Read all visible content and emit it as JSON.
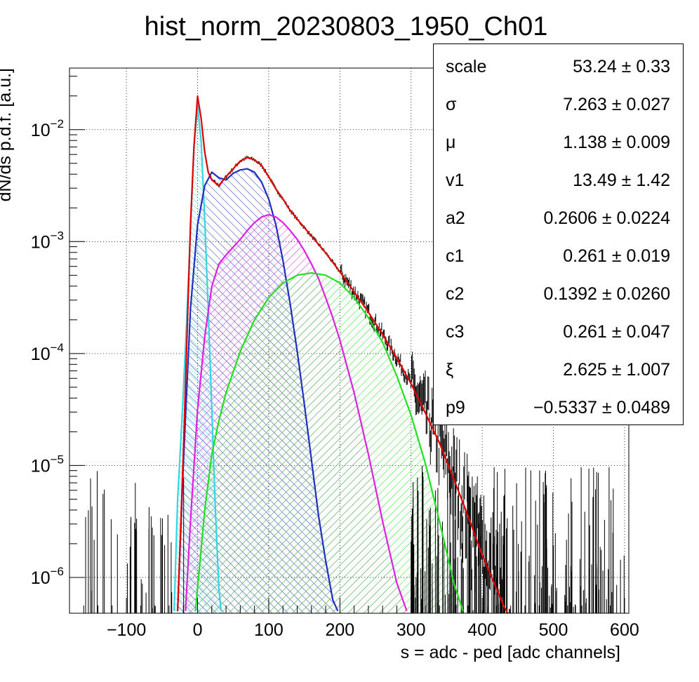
{
  "chart_data": {
    "type": "line",
    "title": "hist_norm_20230803_1950_Ch01",
    "xlabel": "s = adc - ped [adc channels]",
    "ylabel": "dN/ds p.d.f. [a.u.]",
    "xlim": [
      -180,
      606
    ],
    "ylim_log10": [
      -6.32,
      -1.45
    ],
    "log_y": true,
    "grid": true,
    "x_ticks": [
      -100,
      0,
      100,
      200,
      300,
      400,
      500,
      600
    ],
    "x_tick_labels": [
      "−100",
      "0",
      "100",
      "200",
      "300",
      "400",
      "500",
      "600"
    ],
    "y_ticks_exponent": [
      -6,
      -5,
      -4,
      -3,
      -2
    ],
    "y_tick_labels": [
      "10−6",
      "10−5",
      "10−4",
      "10−3",
      "10−2"
    ],
    "colors": {
      "data": "#000000",
      "total_fit": "#e00000",
      "pedestal": "#33d6e0",
      "one_pe": "#1f2fbf",
      "two_pe": "#e020e0",
      "three_pe": "#20e020"
    },
    "series": [
      {
        "key": "pedestal",
        "color": "#33d6e0",
        "hatch": "hatch-cyan",
        "x": [
          -33,
          -28,
          -22,
          -16,
          -10,
          -5,
          0,
          5,
          10,
          15,
          20,
          25,
          30,
          33
        ],
        "log10": [
          -6.3,
          -5.3,
          -4.6,
          -3.8,
          -2.9,
          -2.15,
          -1.78,
          -2.1,
          -2.8,
          -3.6,
          -4.5,
          -5.4,
          -6.1,
          -6.3
        ]
      },
      {
        "key": "one_pe",
        "color": "#1f2fbf",
        "hatch": "hatch-blue",
        "x": [
          -28,
          -20,
          -10,
          0,
          10,
          20,
          30,
          40,
          50,
          60,
          70,
          80,
          90,
          100,
          110,
          120,
          130,
          140,
          150,
          160,
          170,
          180,
          190,
          197
        ],
        "log10": [
          -6.3,
          -5.0,
          -3.6,
          -2.85,
          -2.5,
          -2.38,
          -2.43,
          -2.45,
          -2.39,
          -2.36,
          -2.35,
          -2.38,
          -2.47,
          -2.62,
          -2.85,
          -3.17,
          -3.55,
          -3.98,
          -4.45,
          -4.95,
          -5.45,
          -5.85,
          -6.2,
          -6.3
        ]
      },
      {
        "key": "two_pe",
        "color": "#e020e0",
        "hatch": "hatch-magenta",
        "x": [
          -17,
          -10,
          0,
          10,
          20,
          30,
          40,
          50,
          60,
          70,
          80,
          90,
          100,
          110,
          120,
          130,
          140,
          150,
          160,
          170,
          180,
          190,
          200,
          220,
          240,
          260,
          280,
          294
        ],
        "log10": [
          -6.3,
          -5.5,
          -4.5,
          -3.85,
          -3.4,
          -3.2,
          -3.12,
          -3.05,
          -2.98,
          -2.9,
          -2.83,
          -2.78,
          -2.76,
          -2.78,
          -2.83,
          -2.9,
          -2.98,
          -3.08,
          -3.2,
          -3.33,
          -3.5,
          -3.68,
          -3.88,
          -4.35,
          -4.9,
          -5.5,
          -6.05,
          -6.3
        ]
      },
      {
        "key": "three_pe",
        "color": "#20e020",
        "hatch": "hatch-green",
        "x": [
          -3,
          10,
          20,
          30,
          40,
          60,
          80,
          100,
          120,
          140,
          160,
          180,
          200,
          220,
          240,
          260,
          280,
          300,
          320,
          340,
          360,
          373
        ],
        "log10": [
          -6.3,
          -5.4,
          -4.9,
          -4.6,
          -4.35,
          -3.98,
          -3.7,
          -3.5,
          -3.37,
          -3.3,
          -3.28,
          -3.3,
          -3.37,
          -3.5,
          -3.68,
          -3.9,
          -4.2,
          -4.55,
          -4.98,
          -5.5,
          -6.05,
          -6.3
        ]
      },
      {
        "key": "total_fit",
        "color": "#e00000",
        "hatch": null,
        "x": [
          -28,
          -20,
          -10,
          -5,
          0,
          5,
          10,
          15,
          20,
          30,
          40,
          50,
          60,
          70,
          80,
          90,
          100,
          110,
          120,
          130,
          140,
          160,
          180,
          200,
          220,
          240,
          260,
          280,
          300,
          320,
          340,
          360,
          380,
          400,
          420,
          430,
          436
        ],
        "log10": [
          -6.3,
          -4.9,
          -2.85,
          -2.15,
          -1.7,
          -1.9,
          -2.2,
          -2.38,
          -2.45,
          -2.5,
          -2.42,
          -2.35,
          -2.28,
          -2.25,
          -2.27,
          -2.32,
          -2.42,
          -2.53,
          -2.62,
          -2.72,
          -2.8,
          -2.95,
          -3.1,
          -3.27,
          -3.45,
          -3.63,
          -3.83,
          -4.04,
          -4.27,
          -4.53,
          -4.8,
          -5.12,
          -5.45,
          -5.8,
          -6.1,
          -6.25,
          -6.32
        ]
      }
    ]
  },
  "stats": [
    {
      "name": "scale",
      "value": "53.24 ± 0.33"
    },
    {
      "name": "σ",
      "value": "7.263 ± 0.027"
    },
    {
      "name": "μ",
      "value": "1.138 ± 0.009"
    },
    {
      "name": "v1",
      "value": "13.49 ± 1.42"
    },
    {
      "name": "a2",
      "value": "0.2606 ± 0.0224"
    },
    {
      "name": "c1",
      "value": "0.261 ± 0.019"
    },
    {
      "name": "c2",
      "value": "0.1392 ± 0.0260"
    },
    {
      "name": "c3",
      "value": "0.261 ± 0.047"
    },
    {
      "name": "ξ",
      "value": "2.625 ± 1.007"
    },
    {
      "name": "p9",
      "value": "−0.5337 ± 0.0489"
    }
  ]
}
